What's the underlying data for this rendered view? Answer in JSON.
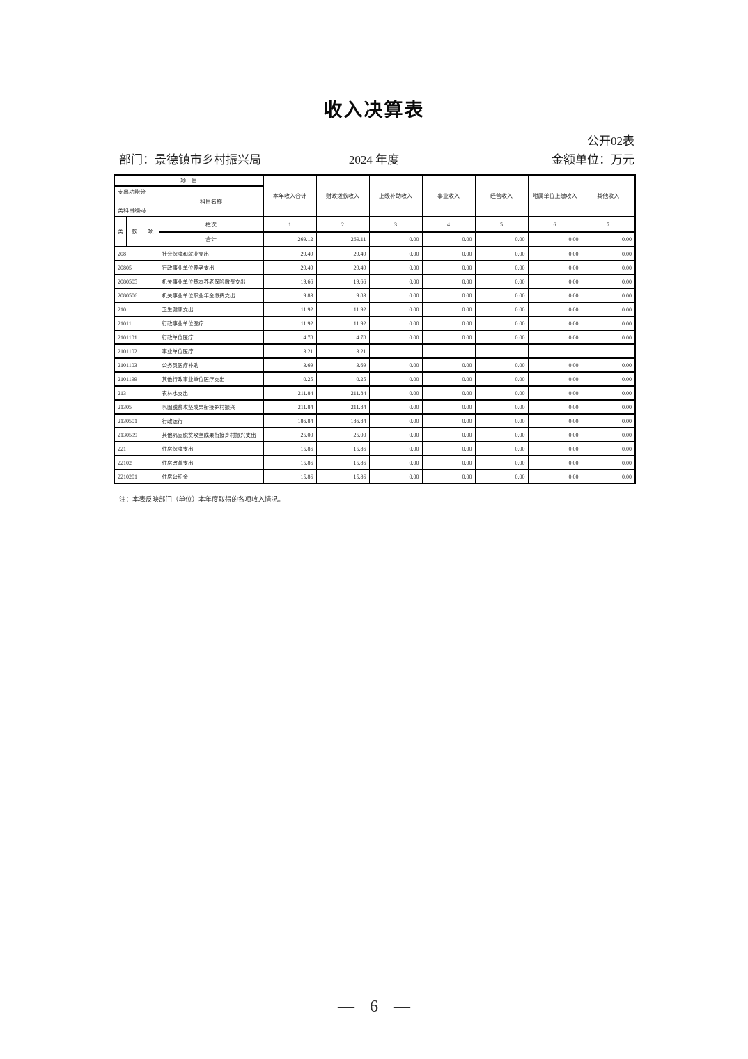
{
  "page": {
    "title": "收入决算表",
    "table_code": "公开02表",
    "department": "部门：景德镇市乡村振兴局",
    "year": "2024 年度",
    "unit": "金额单位：万元",
    "note": "注：本表反映部门（单位）本年度取得的各项收入情况。",
    "page_number": "— 6 —"
  },
  "table": {
    "project_header": "项　目",
    "code_header_line1": "支出功能分",
    "code_header_line2": "类科目编码",
    "subject_header": "科目名称",
    "columns": [
      "本年收入合计",
      "财政拨款收入",
      "上级补助收入",
      "事业收入",
      "经营收入",
      "附属单位上缴收入",
      "其他收入"
    ],
    "code_sub_headers": [
      "类",
      "款",
      "项"
    ],
    "lanci_label": "栏次",
    "column_numbers": [
      "1",
      "2",
      "3",
      "4",
      "5",
      "6",
      "7"
    ],
    "total_row": {
      "label": "合计",
      "values": [
        "269.12",
        "269.11",
        "0.00",
        "0.00",
        "0.00",
        "0.00",
        "0.00"
      ]
    },
    "rows": [
      {
        "code": "208",
        "name": "社会保障和就业支出",
        "values": [
          "29.49",
          "29.49",
          "0.00",
          "0.00",
          "0.00",
          "0.00",
          "0.00"
        ]
      },
      {
        "code": "20805",
        "name": "行政事业单位养老支出",
        "values": [
          "29.49",
          "29.49",
          "0.00",
          "0.00",
          "0.00",
          "0.00",
          "0.00"
        ]
      },
      {
        "code": "2080505",
        "name": "机关事业单位基本养老保险缴费支出",
        "values": [
          "19.66",
          "19.66",
          "0.00",
          "0.00",
          "0.00",
          "0.00",
          "0.00"
        ]
      },
      {
        "code": "2080506",
        "name": "机关事业单位职业年金缴费支出",
        "values": [
          "9.83",
          "9.83",
          "0.00",
          "0.00",
          "0.00",
          "0.00",
          "0.00"
        ]
      },
      {
        "code": "210",
        "name": "卫生健康支出",
        "values": [
          "11.92",
          "11.92",
          "0.00",
          "0.00",
          "0.00",
          "0.00",
          "0.00"
        ]
      },
      {
        "code": "21011",
        "name": "行政事业单位医疗",
        "values": [
          "11.92",
          "11.92",
          "0.00",
          "0.00",
          "0.00",
          "0.00",
          "0.00"
        ]
      },
      {
        "code": "2101101",
        "name": "行政单位医疗",
        "values": [
          "4.78",
          "4.78",
          "0.00",
          "0.00",
          "0.00",
          "0.00",
          "0.00"
        ]
      },
      {
        "code": "2101102",
        "name": "事业单位医疗",
        "values": [
          "3.21",
          "3.21",
          "",
          "",
          "",
          "",
          ""
        ]
      },
      {
        "code": "2101103",
        "name": "公务员医疗补助",
        "values": [
          "3.69",
          "3.69",
          "0.00",
          "0.00",
          "0.00",
          "0.00",
          "0.00"
        ]
      },
      {
        "code": "2101199",
        "name": "其他行政事业单位医疗支出",
        "values": [
          "0.25",
          "0.25",
          "0.00",
          "0.00",
          "0.00",
          "0.00",
          "0.00"
        ]
      },
      {
        "code": "213",
        "name": "农林水支出",
        "values": [
          "211.84",
          "211.84",
          "0.00",
          "0.00",
          "0.00",
          "0.00",
          "0.00"
        ]
      },
      {
        "code": "21305",
        "name": "巩固脱贫攻坚成果衔接乡村振兴",
        "values": [
          "211.84",
          "211.84",
          "0.00",
          "0.00",
          "0.00",
          "0.00",
          "0.00"
        ]
      },
      {
        "code": "2130501",
        "name": "行政运行",
        "values": [
          "186.84",
          "186.84",
          "0.00",
          "0.00",
          "0.00",
          "0.00",
          "0.00"
        ]
      },
      {
        "code": "2130599",
        "name": "其他巩固脱贫攻坚成果衔接乡村振兴支出",
        "values": [
          "25.00",
          "25.00",
          "0.00",
          "0.00",
          "0.00",
          "0.00",
          "0.00"
        ]
      },
      {
        "code": "221",
        "name": "住房保障支出",
        "values": [
          "15.86",
          "15.86",
          "0.00",
          "0.00",
          "0.00",
          "0.00",
          "0.00"
        ]
      },
      {
        "code": "22102",
        "name": "住房改革支出",
        "values": [
          "15.86",
          "15.86",
          "0.00",
          "0.00",
          "0.00",
          "0.00",
          "0.00"
        ]
      },
      {
        "code": "2210201",
        "name": "住房公积金",
        "values": [
          "15.86",
          "15.86",
          "0.00",
          "0.00",
          "0.00",
          "0.00",
          "0.00"
        ]
      }
    ]
  }
}
